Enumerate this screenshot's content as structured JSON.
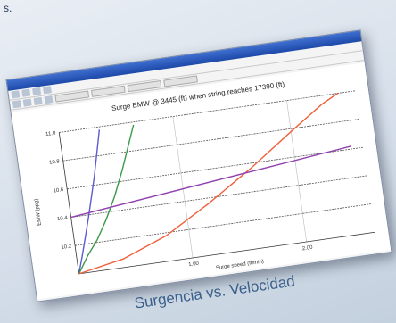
{
  "corner_text": "s.",
  "caption": "Surgencia vs. Velocidad",
  "chart_data": {
    "type": "line",
    "title": "Surge EMW @ 3445 (ft) when string reaches 17390 (ft)",
    "x_label": "Surge speed (ft/min)",
    "y_label": "EMW (ppg)",
    "xlim": [
      0,
      2.6
    ],
    "ylim": [
      10.0,
      11.0
    ],
    "xticks": [
      {
        "value": 1,
        "label": "1.00"
      },
      {
        "value": 2,
        "label": "2.00"
      }
    ],
    "yticks": [
      10.2,
      10.4,
      10.6,
      10.8,
      {
        "value": 11,
        "label": "11.0"
      }
    ],
    "grid": true,
    "series": [
      {
        "color": "#5b5bd0",
        "x": [
          0,
          0.05,
          0.1,
          0.15,
          0.2,
          0.25,
          0.3,
          0.35
        ],
        "values": [
          10.0,
          10.12,
          10.25,
          10.38,
          10.52,
          10.66,
          10.82,
          10.98
        ]
      },
      {
        "color": "#3a9a4a",
        "x": [
          0,
          0.1,
          0.2,
          0.3,
          0.4,
          0.5,
          0.6,
          0.65
        ],
        "values": [
          10.0,
          10.12,
          10.22,
          10.35,
          10.5,
          10.68,
          10.88,
          10.98
        ]
      },
      {
        "color": "#f0603a",
        "x": [
          0,
          0.4,
          0.8,
          1.2,
          1.6,
          2.0,
          2.3,
          2.45
        ],
        "values": [
          10.0,
          10.06,
          10.18,
          10.36,
          10.56,
          10.78,
          10.94,
          11.0
        ]
      },
      {
        "color": "#9040b0",
        "x": [
          0,
          2.5
        ],
        "values": [
          10.4,
          10.62
        ]
      }
    ]
  }
}
